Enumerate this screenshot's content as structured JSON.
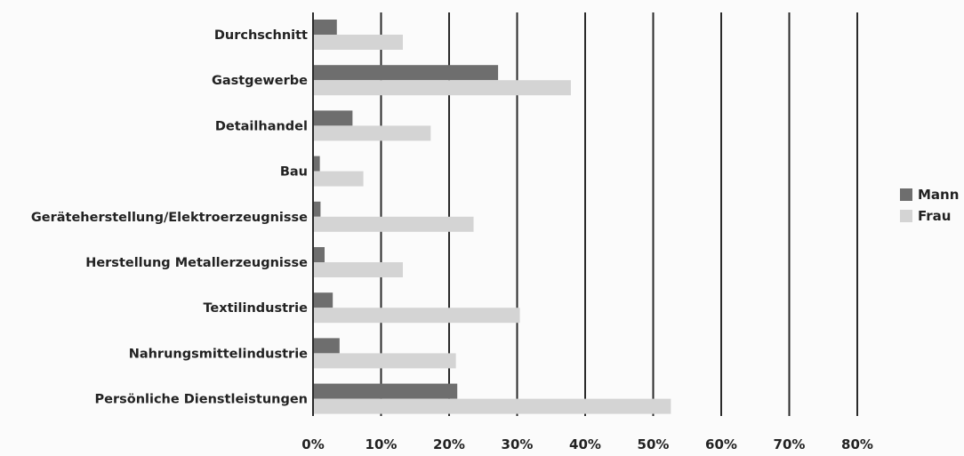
{
  "chart_data": {
    "type": "bar",
    "orientation": "horizontal",
    "title": "",
    "xlabel": "",
    "ylabel": "",
    "categories": [
      "Durchschnitt",
      "Gastgewerbe",
      "Detailhandel",
      "Bau",
      "Geräteherstellung/Elektroerzeugnisse",
      "Herstellung Metallerzeugnisse",
      "Textilindustrie",
      "Nahrungsmittelindustrie",
      "Persönliche Dienstleistungen"
    ],
    "series": [
      {
        "name": "Mann",
        "color": "#6e6e6e",
        "values": [
          3.5,
          27.2,
          5.8,
          1.0,
          1.1,
          1.7,
          2.9,
          3.9,
          21.2
        ]
      },
      {
        "name": "Frau",
        "color": "#d4d4d4",
        "values": [
          13.2,
          37.9,
          17.3,
          7.4,
          23.6,
          13.2,
          30.4,
          21.0,
          52.6
        ]
      }
    ],
    "xlim": [
      0,
      80
    ],
    "xticks": [
      "0%",
      "10%",
      "20%",
      "30%",
      "40%",
      "50%",
      "60%",
      "70%",
      "80%"
    ],
    "grid": "vertical",
    "legend": "right"
  }
}
